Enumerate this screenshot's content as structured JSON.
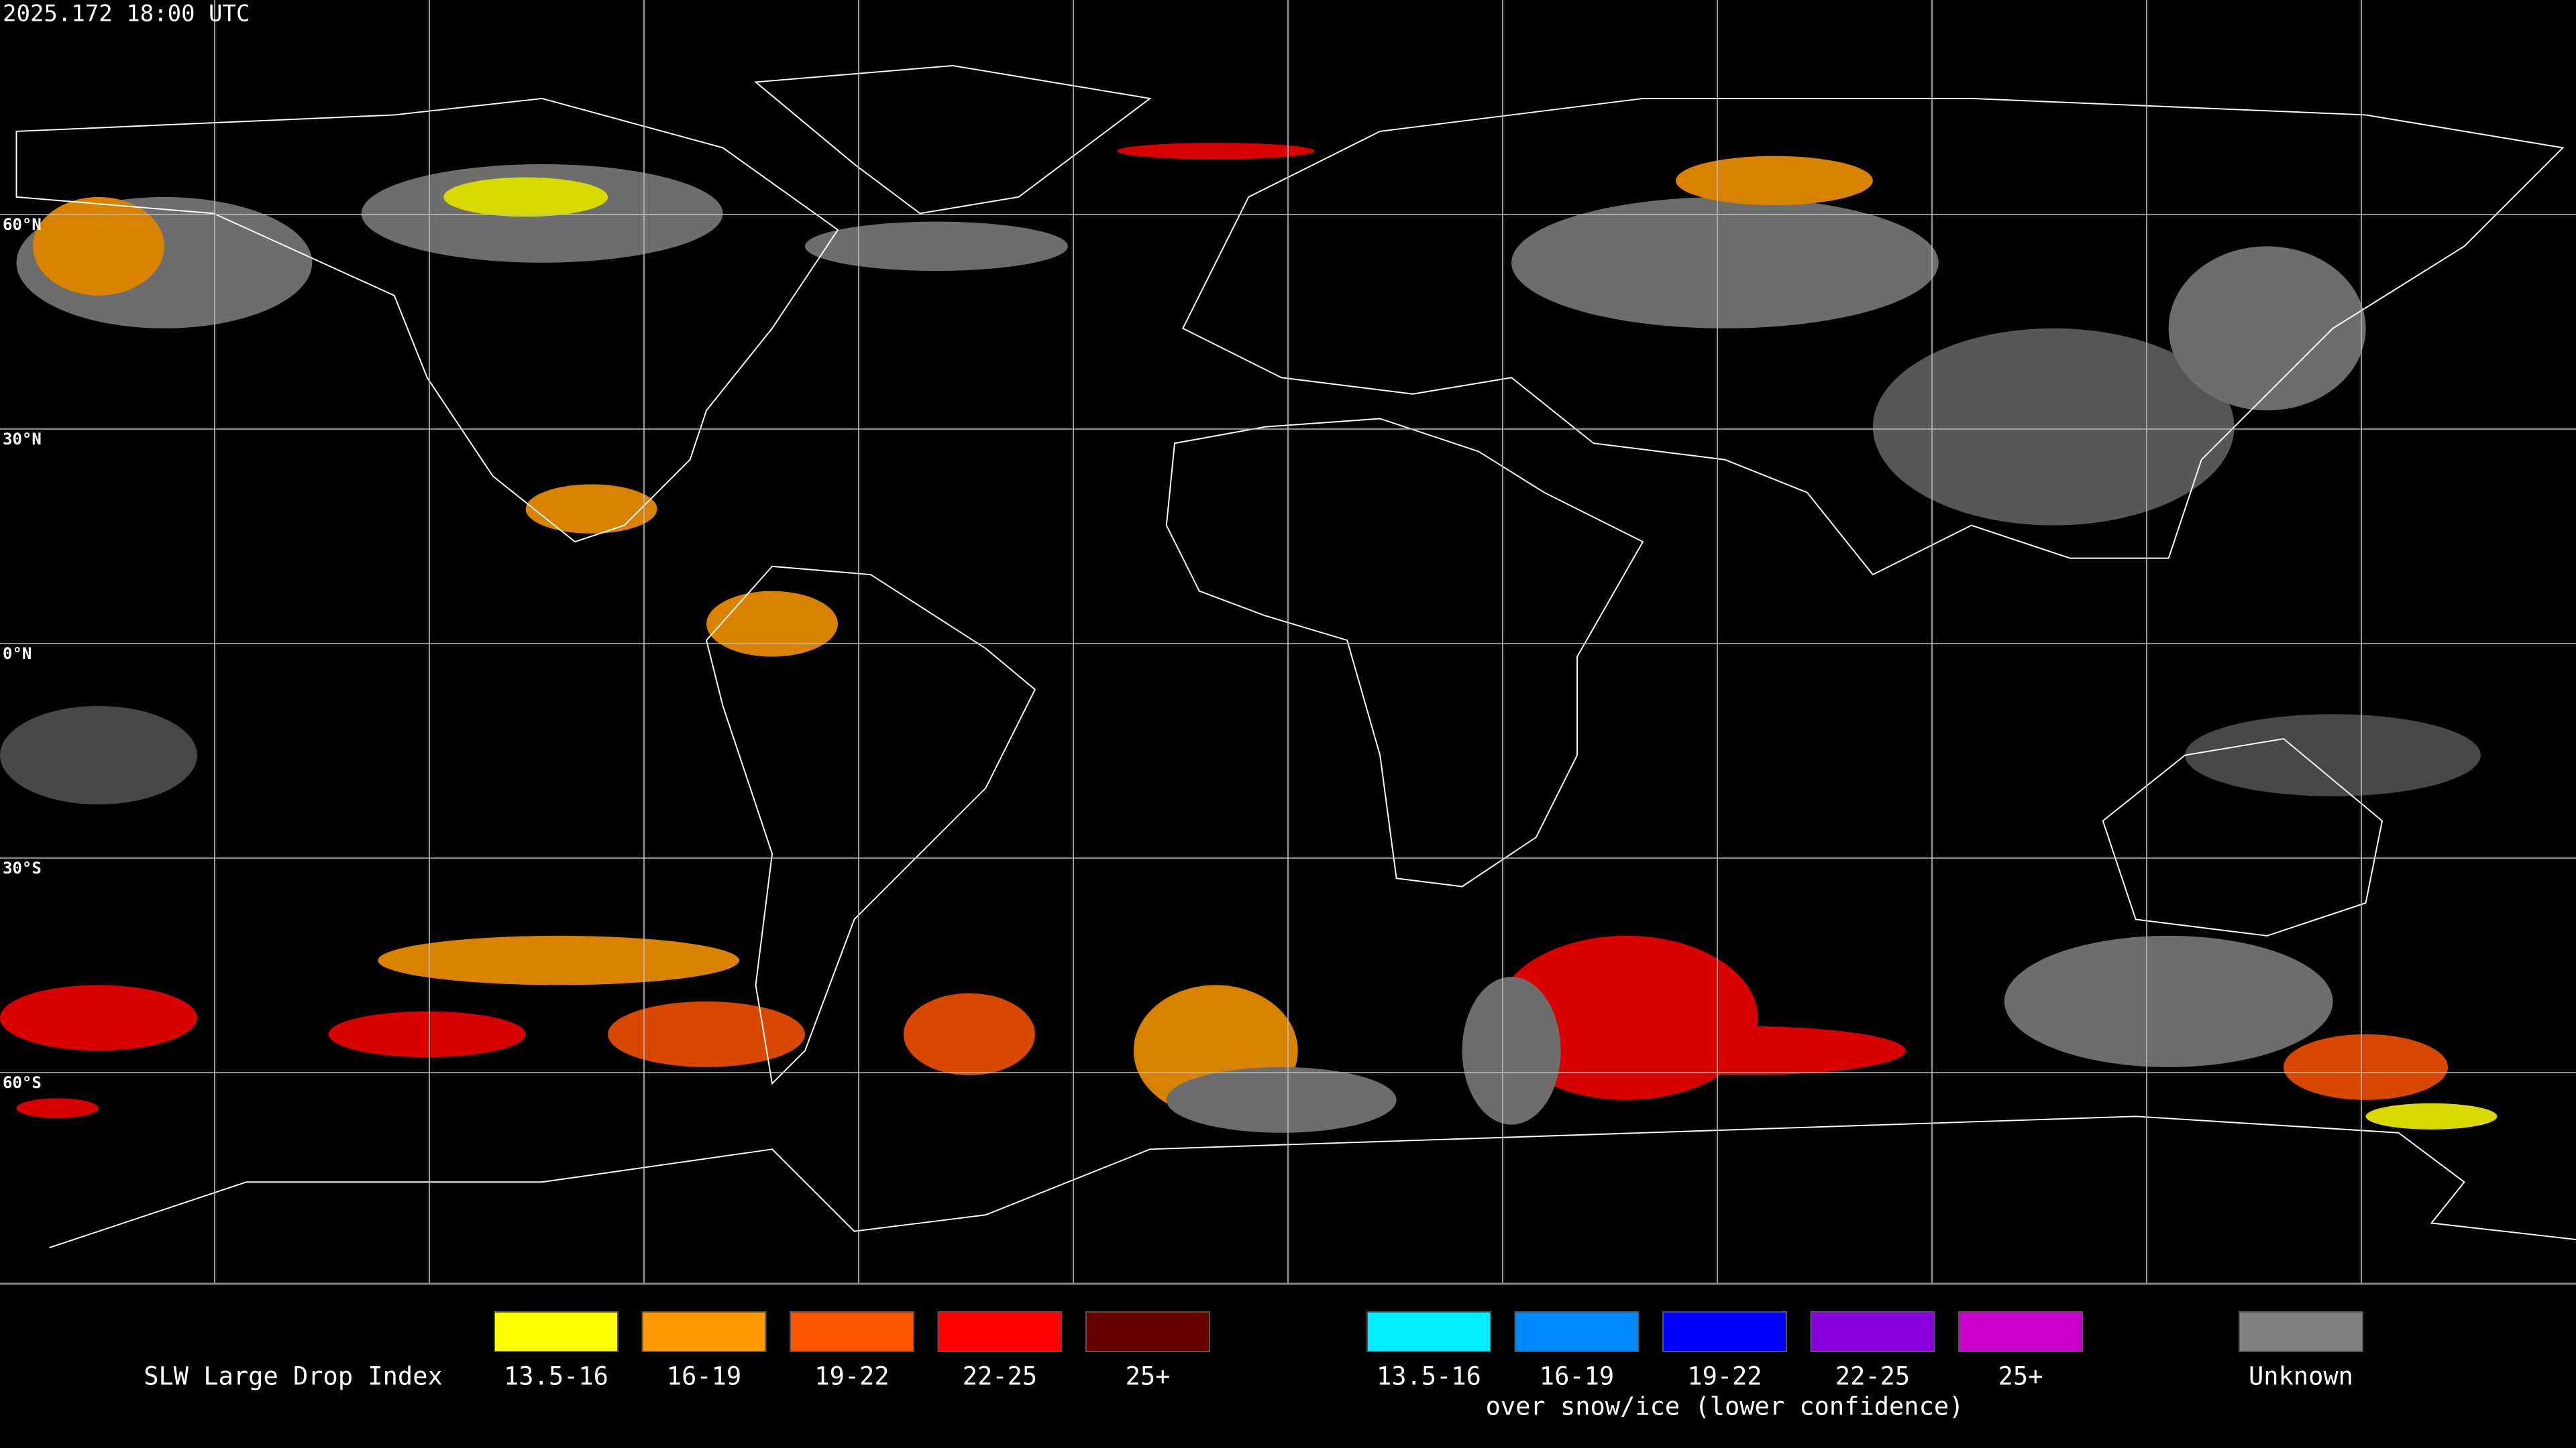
{
  "timestamp": "2025.172 18:00 UTC",
  "latitude_labels": [
    "60°N",
    "30°N",
    "0°N",
    "30°S",
    "60°S"
  ],
  "legend": {
    "title": "SLW Large Drop Index",
    "groups": [
      {
        "items": [
          {
            "label": "13.5-16",
            "color": "#ffff00"
          },
          {
            "label": "16-19",
            "color": "#ff9900"
          },
          {
            "label": "19-22",
            "color": "#ff5500"
          },
          {
            "label": "22-25",
            "color": "#ff0000"
          },
          {
            "label": "25+",
            "color": "#660000"
          }
        ]
      },
      {
        "items": [
          {
            "label": "13.5-16",
            "color": "#00eeff"
          },
          {
            "label": "16-19",
            "color": "#0088ff"
          },
          {
            "label": "19-22",
            "color": "#0000ff"
          },
          {
            "label": "22-25",
            "color": "#8800dd"
          },
          {
            "label": "25+",
            "color": "#cc00cc"
          }
        ],
        "caption": "over snow/ice (lower confidence)"
      },
      {
        "items": [
          {
            "label": "Unknown",
            "color": "#808080"
          }
        ]
      }
    ]
  }
}
